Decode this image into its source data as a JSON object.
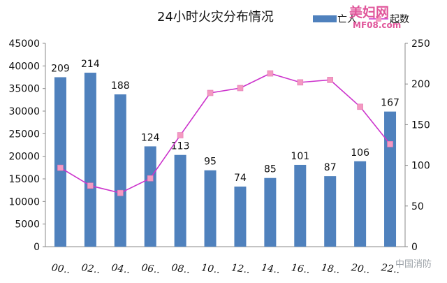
{
  "chart_data": {
    "type": "bar",
    "title": "24小时火灾分布情况",
    "categories": [
      "00..",
      "02..",
      "04..",
      "06..",
      "08..",
      "10..",
      "12..",
      "14..",
      "16..",
      "18..",
      "20..",
      "22.."
    ],
    "series": [
      {
        "name": "亡人",
        "type": "bar",
        "axis": "left",
        "values": [
          37500,
          38500,
          33700,
          22200,
          20300,
          16900,
          13300,
          15200,
          18100,
          15600,
          18900,
          29900
        ],
        "data_labels": [
          "209",
          "214",
          "188",
          "124",
          "113",
          "95",
          "74",
          "85",
          "101",
          "87",
          "106",
          "167"
        ],
        "color": "#4f81bd"
      },
      {
        "name": "起数",
        "type": "line",
        "axis": "right",
        "values": [
          97,
          75,
          66,
          84,
          137,
          189,
          195,
          213,
          202,
          205,
          172,
          126
        ],
        "color": "#cc33cc",
        "marker_color": "#f49ac1"
      }
    ],
    "y_left": {
      "ylim": [
        0,
        45000
      ],
      "ticks": [
        "0",
        "5000",
        "10000",
        "15000",
        "20000",
        "25000",
        "30000",
        "35000",
        "40000",
        "45000"
      ]
    },
    "y_right": {
      "ylim": [
        0,
        250
      ],
      "ticks": [
        "0",
        "50",
        "100",
        "150",
        "200",
        "250"
      ]
    },
    "legend_position": "top-right",
    "grid": false
  },
  "watermark": {
    "line1": "美妇网",
    "line2": "MF08.com"
  },
  "source_mark": "中国消防"
}
